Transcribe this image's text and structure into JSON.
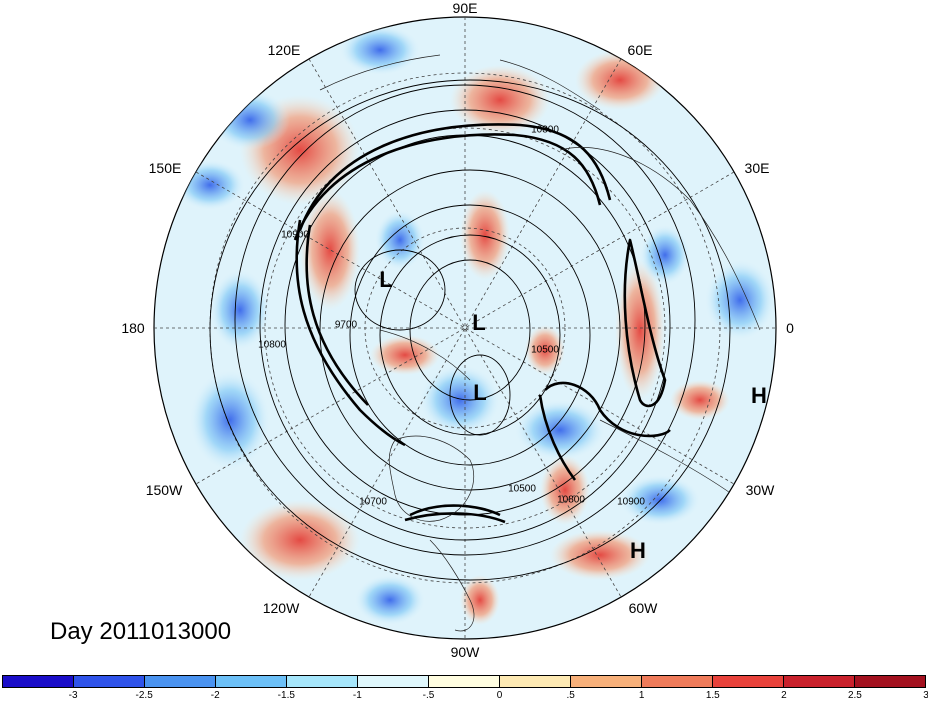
{
  "map": {
    "projection": "north-polar-stereographic",
    "longitude_labels": [
      "90E",
      "60E",
      "30E",
      "0",
      "30W",
      "60W",
      "90W",
      "120W",
      "150W",
      "180",
      "150E",
      "120E"
    ],
    "center_labels": [
      {
        "id": "low-1",
        "text": "L"
      },
      {
        "id": "low-2",
        "text": "L"
      },
      {
        "id": "low-3",
        "text": "L"
      },
      {
        "id": "high-1",
        "text": "H"
      },
      {
        "id": "high-2",
        "text": "H"
      }
    ],
    "contour_labels": [
      "10800",
      "10900",
      "10800",
      "9700",
      "10500",
      "10700",
      "10900",
      "10800",
      "10500"
    ],
    "date_label": "Day 2011013000"
  },
  "colorbar": {
    "colors": [
      "#1a0dc9",
      "#2f53ea",
      "#4a93f0",
      "#6cc0f7",
      "#a6e6fb",
      "#dff7fc",
      "#fffde0",
      "#fde9b3",
      "#f7b07a",
      "#ef7b5a",
      "#e8423b",
      "#c9212c",
      "#a3111f"
    ],
    "tick_labels": [
      "-3",
      "-2.5",
      "-2",
      "-1.5",
      "-1",
      "-.5",
      "0",
      ".5",
      "1",
      "1.5",
      "2",
      "2.5",
      "3"
    ]
  }
}
